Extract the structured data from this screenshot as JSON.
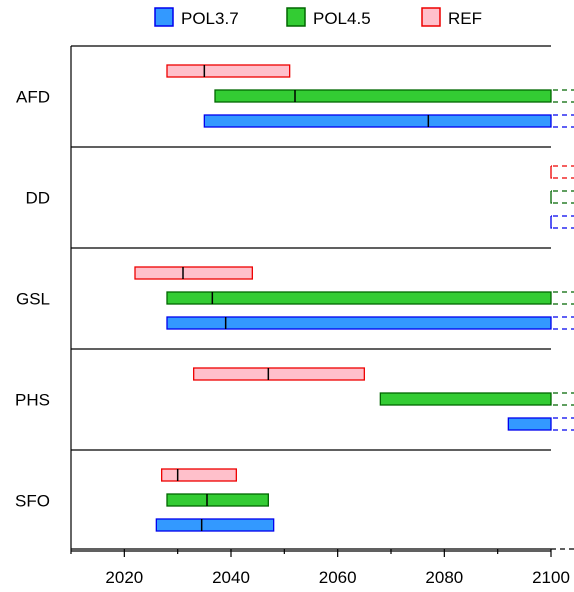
{
  "chart_data": {
    "type": "range-bar",
    "title": "",
    "xlabel": "",
    "ylabel": "",
    "xlim": [
      2010,
      2100
    ],
    "x_ticks": [
      2020,
      2040,
      2060,
      2080,
      2100
    ],
    "x_tick_labels": [
      "2020",
      "2040",
      "2060",
      "2080",
      "2100"
    ],
    "legend": {
      "placement": "top",
      "entries": [
        {
          "name": "POL3.7",
          "fill": "#3399ff",
          "stroke": "#0000ee"
        },
        {
          "name": "POL4.5",
          "fill": "#33cc33",
          "stroke": "#006600"
        },
        {
          "name": "REF",
          "fill": "#ffc0cb",
          "stroke": "#ee0000"
        }
      ]
    },
    "categories": [
      "AFD",
      "DD",
      "GSL",
      "PHS",
      "SFO"
    ],
    "series": [
      {
        "name": "REF",
        "fill": "#ffc0cb",
        "stroke": "#ee0000",
        "ranges": [
          {
            "category": "AFD",
            "start": 2028,
            "median": 2035,
            "end": 2051,
            "extends_beyond": false
          },
          {
            "category": "DD",
            "start": 2100,
            "median": null,
            "end": 2100,
            "extends_beyond": true
          },
          {
            "category": "GSL",
            "start": 2022,
            "median": 2031,
            "end": 2044,
            "extends_beyond": false
          },
          {
            "category": "PHS",
            "start": 2033,
            "median": 2047,
            "end": 2065,
            "extends_beyond": false
          },
          {
            "category": "SFO",
            "start": 2027,
            "median": 2030,
            "end": 2041,
            "extends_beyond": false
          }
        ]
      },
      {
        "name": "POL4.5",
        "fill": "#33cc33",
        "stroke": "#006600",
        "ranges": [
          {
            "category": "AFD",
            "start": 2037,
            "median": 2052,
            "end": 2100,
            "extends_beyond": true
          },
          {
            "category": "DD",
            "start": 2100,
            "median": null,
            "end": 2100,
            "extends_beyond": true
          },
          {
            "category": "GSL",
            "start": 2028,
            "median": 2036.5,
            "end": 2100,
            "extends_beyond": true
          },
          {
            "category": "PHS",
            "start": 2068,
            "median": null,
            "end": 2100,
            "extends_beyond": true
          },
          {
            "category": "SFO",
            "start": 2028,
            "median": 2035.5,
            "end": 2047,
            "extends_beyond": false
          }
        ]
      },
      {
        "name": "POL3.7",
        "fill": "#3399ff",
        "stroke": "#0000ee",
        "ranges": [
          {
            "category": "AFD",
            "start": 2035,
            "median": 2077,
            "end": 2100,
            "extends_beyond": true
          },
          {
            "category": "DD",
            "start": 2100,
            "median": null,
            "end": 2100,
            "extends_beyond": true
          },
          {
            "category": "GSL",
            "start": 2028,
            "median": 2039,
            "end": 2100,
            "extends_beyond": true
          },
          {
            "category": "PHS",
            "start": 2092,
            "median": null,
            "end": 2100,
            "extends_beyond": true
          },
          {
            "category": "SFO",
            "start": 2026,
            "median": 2034.5,
            "end": 2048,
            "extends_beyond": false
          }
        ]
      }
    ],
    "gridlines": false
  }
}
